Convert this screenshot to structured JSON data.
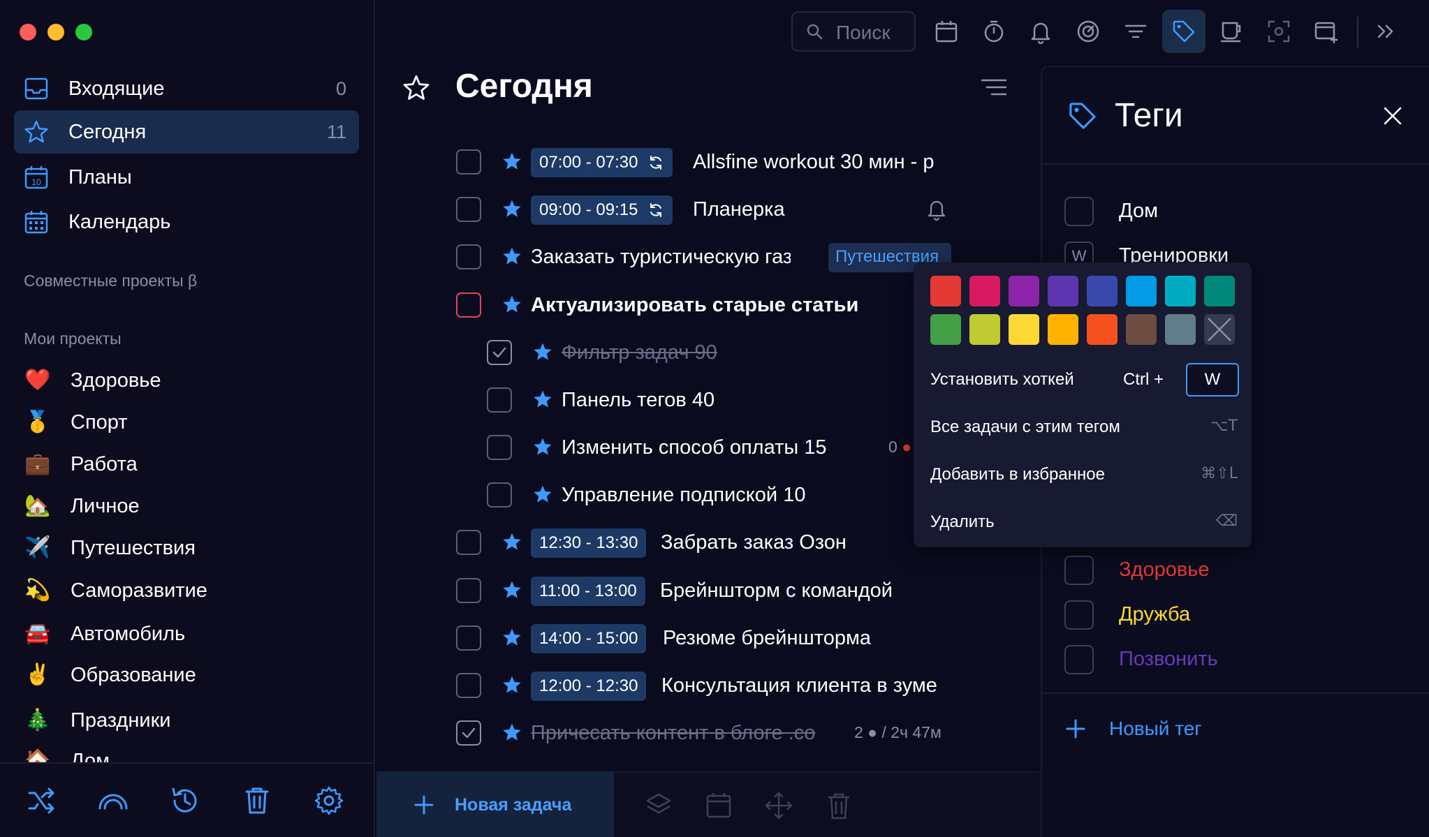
{
  "sidebar": {
    "nav": [
      {
        "label": "Входящие",
        "count": "0"
      },
      {
        "label": "Сегодня",
        "count": "11"
      },
      {
        "label": "Планы",
        "count": ""
      },
      {
        "label": "Календарь",
        "count": ""
      }
    ],
    "calendar_day": "10",
    "shared_projects_heading": "Совместные проекты β",
    "my_projects_heading": "Мои проекты",
    "projects": [
      {
        "emoji": "❤️",
        "label": "Здоровье"
      },
      {
        "emoji": "🥇",
        "label": "Спорт"
      },
      {
        "emoji": "💼",
        "label": "Работа"
      },
      {
        "emoji": "🏡",
        "label": "Личное"
      },
      {
        "emoji": "✈️",
        "label": "Путешествия"
      },
      {
        "emoji": "💫",
        "label": "Саморазвитие"
      },
      {
        "emoji": "🚘",
        "label": "Автомобиль"
      },
      {
        "emoji": "✌️",
        "label": "Образование"
      },
      {
        "emoji": "🎄",
        "label": "Праздники"
      },
      {
        "emoji": "🏠",
        "label": "Дом"
      }
    ]
  },
  "toolbar": {
    "search_placeholder": "Поиск"
  },
  "main": {
    "title": "Сегодня",
    "tasks": [
      {
        "time": "07:00 - 07:30",
        "text": "Allsfine workout 30 мин - р"
      },
      {
        "time": "09:00 - 09:15",
        "text": "Планерка"
      },
      {
        "text": "Заказать туристическую газ",
        "tag": "Путешествия"
      },
      {
        "text": "Актуализировать старые статьи"
      },
      {
        "text": "Фильтр задач 90"
      },
      {
        "text": "Панель тегов 40"
      },
      {
        "text": "Изменить способ оплаты 15",
        "meta": "0"
      },
      {
        "text": "Управление подпиской 10"
      },
      {
        "time": "12:30 - 13:30",
        "text": "Забрать заказ Озон"
      },
      {
        "time": "11:00 - 13:00",
        "text": "Брейншторм с командой"
      },
      {
        "time": "14:00 - 15:00",
        "text": "Резюме брейншторма"
      },
      {
        "time": "12:00 - 12:30",
        "text": "Консультация клиента в зуме"
      },
      {
        "text": "Причесать контент в блоге .co",
        "meta": "2 ● / 2ч 47м"
      }
    ],
    "new_task_label": "Новая задача"
  },
  "tags_panel": {
    "title": "Теги",
    "tags": [
      {
        "label": "Дом",
        "color": "#ffffff",
        "hotkey": ""
      },
      {
        "label": "Тренировки",
        "color": "#ffffff",
        "hotkey": "W"
      },
      {
        "label": "Здоровье",
        "color": "#e53935",
        "hotkey": ""
      },
      {
        "label": "Дружба",
        "color": "#fdd835",
        "hotkey": ""
      },
      {
        "label": "Позвонить",
        "color": "#673ab7",
        "hotkey": ""
      }
    ],
    "new_tag_label": "Новый тег"
  },
  "context_menu": {
    "colors": [
      "#e53935",
      "#d81b60",
      "#8e24aa",
      "#5e35b1",
      "#3949ab",
      "#039be5",
      "#00acc1",
      "#00897b",
      "#43a047",
      "#c0ca33",
      "#fdd835",
      "#ffb300",
      "#f4511e",
      "#6d4c41",
      "#607d8b"
    ],
    "hotkey_label": "Установить хоткей",
    "hotkey_prefix": "Ctrl +",
    "hotkey_value": "W",
    "all_tasks_label": "Все задачи с этим тегом",
    "all_tasks_shortcut": "⌥T",
    "favorite_label": "Добавить в избранное",
    "favorite_shortcut": "⌘⇧L",
    "delete_label": "Удалить",
    "delete_shortcut": "⌫"
  },
  "colors": {
    "accent": "#3d9bff",
    "background": "#0a0b1e",
    "active_nav": "#1a2c4d",
    "time_chip": "#1d3a66"
  }
}
